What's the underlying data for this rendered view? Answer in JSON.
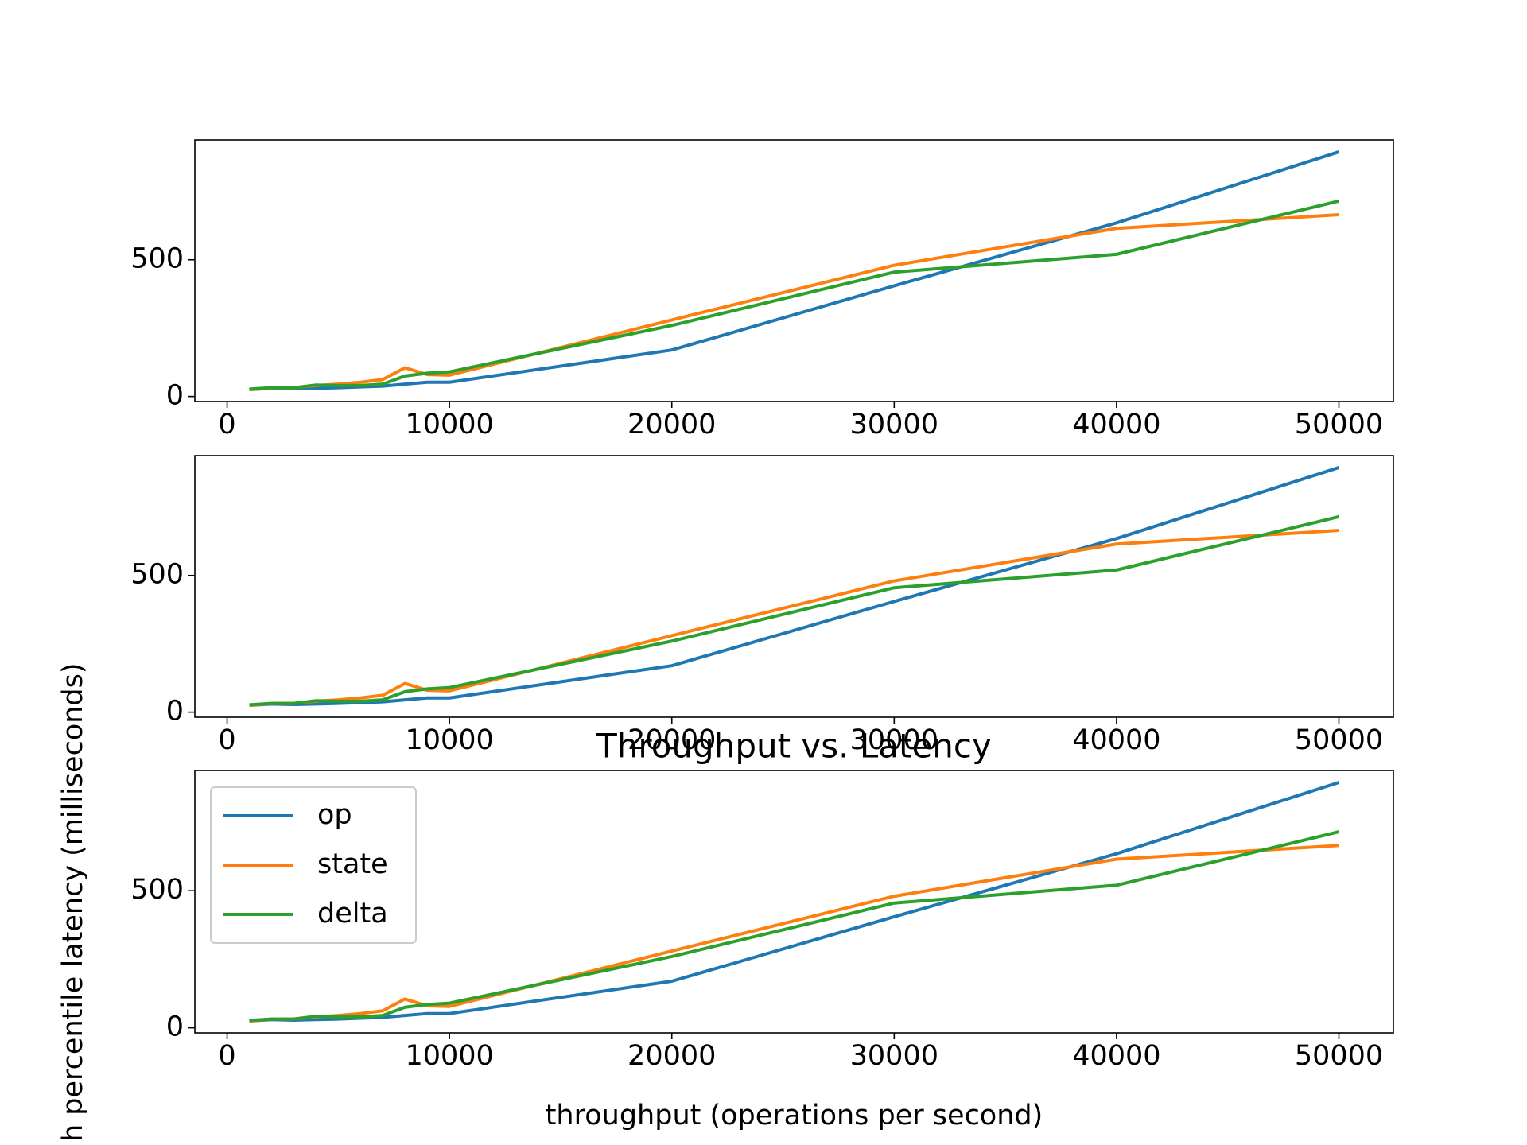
{
  "chart_data": [
    {
      "type": "line",
      "x": [
        1000,
        2000,
        3000,
        4000,
        5000,
        6000,
        7000,
        8000,
        9000,
        10000,
        20000,
        30000,
        40000,
        50000
      ],
      "series": [
        {
          "name": "op",
          "color": "#1f77b4",
          "values": [
            25,
            30,
            28,
            30,
            32,
            35,
            38,
            45,
            52,
            52,
            170,
            405,
            635,
            895
          ]
        },
        {
          "name": "state",
          "color": "#ff7f0e",
          "values": [
            25,
            32,
            32,
            40,
            45,
            52,
            62,
            105,
            80,
            78,
            280,
            480,
            615,
            665
          ]
        },
        {
          "name": "delta",
          "color": "#2ca02c",
          "values": [
            27,
            32,
            32,
            42,
            40,
            40,
            45,
            75,
            85,
            90,
            260,
            455,
            520,
            715
          ]
        }
      ],
      "xlim": [
        -1450,
        52450
      ],
      "ylim": [
        -18.5,
        938.5
      ],
      "xticks": [
        0,
        10000,
        20000,
        30000,
        40000,
        50000
      ],
      "yticks": [
        0,
        500
      ]
    },
    {
      "type": "line",
      "x": [
        1000,
        2000,
        3000,
        4000,
        5000,
        6000,
        7000,
        8000,
        9000,
        10000,
        20000,
        30000,
        40000,
        50000
      ],
      "series": [
        {
          "name": "op",
          "color": "#1f77b4",
          "values": [
            25,
            30,
            28,
            30,
            32,
            35,
            38,
            45,
            52,
            52,
            170,
            405,
            635,
            895
          ]
        },
        {
          "name": "state",
          "color": "#ff7f0e",
          "values": [
            25,
            32,
            32,
            40,
            45,
            52,
            62,
            105,
            80,
            78,
            280,
            480,
            615,
            665
          ]
        },
        {
          "name": "delta",
          "color": "#2ca02c",
          "values": [
            27,
            32,
            32,
            42,
            40,
            40,
            45,
            75,
            85,
            90,
            260,
            455,
            520,
            715
          ]
        }
      ],
      "xlim": [
        -1450,
        52450
      ],
      "ylim": [
        -18.5,
        938.5
      ],
      "xticks": [
        0,
        10000,
        20000,
        30000,
        40000,
        50000
      ],
      "yticks": [
        0,
        500
      ]
    },
    {
      "type": "line",
      "title": "Throughput vs. Latency",
      "x_label": "throughput (operations per second)",
      "y_label": "h percentile latency (milliseconds)",
      "legend": "upper left",
      "x": [
        1000,
        2000,
        3000,
        4000,
        5000,
        6000,
        7000,
        8000,
        9000,
        10000,
        20000,
        30000,
        40000,
        50000
      ],
      "series": [
        {
          "name": "op",
          "color": "#1f77b4",
          "values": [
            25,
            30,
            28,
            30,
            32,
            35,
            38,
            45,
            52,
            52,
            170,
            405,
            635,
            895
          ]
        },
        {
          "name": "state",
          "color": "#ff7f0e",
          "values": [
            25,
            32,
            32,
            40,
            45,
            52,
            62,
            105,
            80,
            78,
            280,
            480,
            615,
            665
          ]
        },
        {
          "name": "delta",
          "color": "#2ca02c",
          "values": [
            27,
            32,
            32,
            42,
            40,
            40,
            45,
            75,
            85,
            90,
            260,
            455,
            520,
            715
          ]
        }
      ],
      "xlim": [
        -1450,
        52450
      ],
      "ylim": [
        -18.5,
        938.5
      ],
      "xticks": [
        0,
        10000,
        20000,
        30000,
        40000,
        50000
      ],
      "yticks": [
        0,
        500
      ]
    }
  ]
}
